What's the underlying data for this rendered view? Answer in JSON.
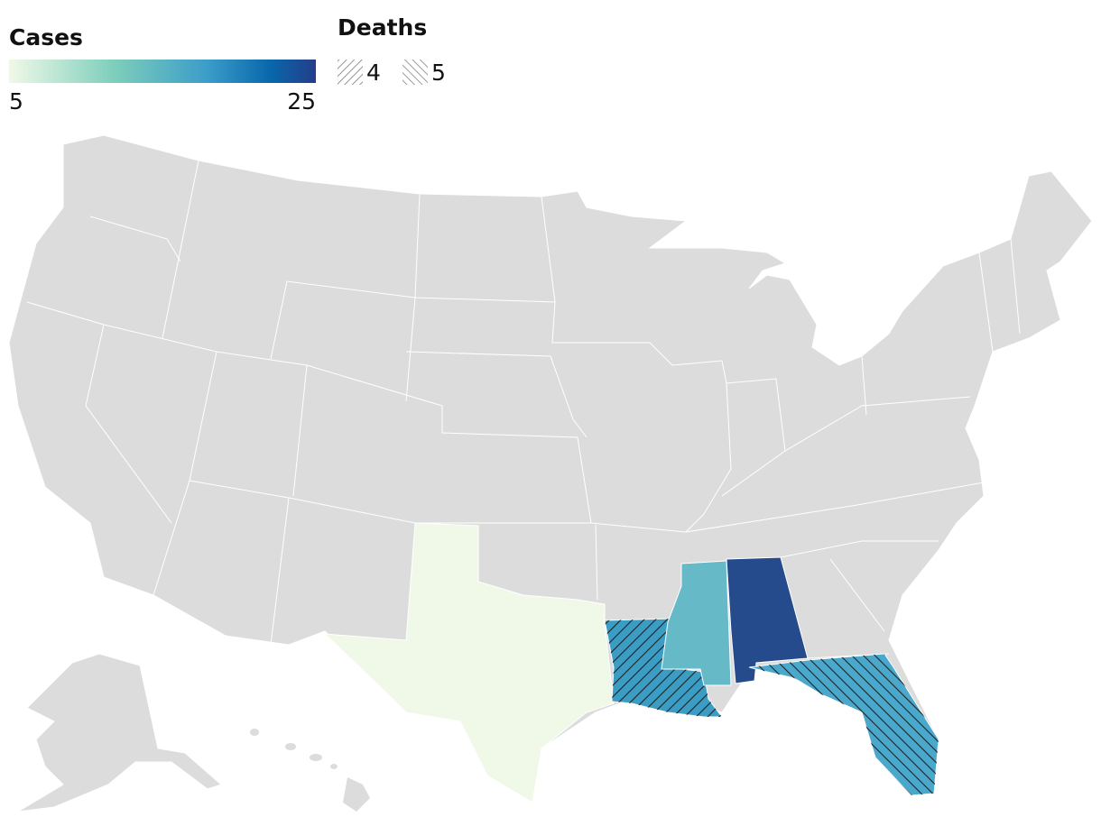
{
  "legend": {
    "cases": {
      "title": "Cases",
      "min": 5,
      "max": 25
    },
    "deaths": {
      "title": "Deaths",
      "items": [
        4,
        5
      ]
    }
  }
}
